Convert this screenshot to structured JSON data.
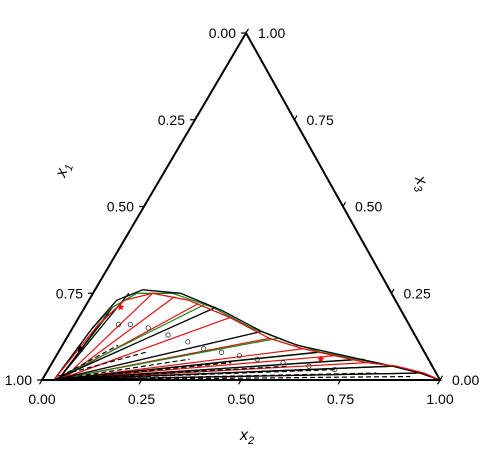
{
  "chart_data": {
    "type": "ternary",
    "axes": {
      "x1": {
        "label": "x",
        "subscript": "1",
        "ticks": [
          "0.00",
          "0.25",
          "0.50",
          "0.75",
          "1.00"
        ]
      },
      "x2": {
        "label": "x",
        "subscript": "2",
        "ticks": [
          "0.00",
          "0.25",
          "0.50",
          "0.75",
          "1.00"
        ]
      },
      "x3": {
        "label": "x",
        "subscript": "3",
        "ticks": [
          "0.00",
          "0.25",
          "0.50",
          "0.75",
          "1.00"
        ]
      }
    },
    "binodal_curves": [
      {
        "color": "#1a8a1a",
        "points": [
          [
            0.97,
            0.03,
            0.0
          ],
          [
            0.8,
            0.05,
            0.15
          ],
          [
            0.72,
            0.07,
            0.21
          ],
          [
            0.64,
            0.11,
            0.25
          ],
          [
            0.55,
            0.2,
            0.25
          ],
          [
            0.47,
            0.32,
            0.21
          ],
          [
            0.4,
            0.45,
            0.15
          ],
          [
            0.33,
            0.56,
            0.11
          ],
          [
            0.26,
            0.66,
            0.08
          ],
          [
            0.18,
            0.76,
            0.06
          ],
          [
            0.1,
            0.86,
            0.04
          ],
          [
            0.04,
            0.94,
            0.02
          ],
          [
            0.0,
            1.0,
            0.0
          ]
        ]
      },
      {
        "color": "#000000",
        "points": [
          [
            0.97,
            0.03,
            0.0
          ],
          [
            0.8,
            0.05,
            0.15
          ],
          [
            0.7,
            0.07,
            0.23
          ],
          [
            0.62,
            0.12,
            0.26
          ],
          [
            0.53,
            0.22,
            0.25
          ],
          [
            0.45,
            0.35,
            0.2
          ],
          [
            0.38,
            0.48,
            0.14
          ],
          [
            0.31,
            0.59,
            0.1
          ],
          [
            0.24,
            0.68,
            0.08
          ],
          [
            0.17,
            0.77,
            0.06
          ],
          [
            0.1,
            0.86,
            0.04
          ],
          [
            0.04,
            0.94,
            0.02
          ],
          [
            0.0,
            1.0,
            0.0
          ]
        ]
      },
      {
        "color": "#e01010",
        "points": [
          [
            0.97,
            0.03,
            0.0
          ],
          [
            0.78,
            0.06,
            0.16
          ],
          [
            0.68,
            0.09,
            0.23
          ],
          [
            0.6,
            0.15,
            0.25
          ],
          [
            0.52,
            0.25,
            0.23
          ],
          [
            0.44,
            0.38,
            0.18
          ],
          [
            0.37,
            0.51,
            0.12
          ],
          [
            0.3,
            0.61,
            0.09
          ],
          [
            0.23,
            0.7,
            0.07
          ],
          [
            0.16,
            0.79,
            0.05
          ],
          [
            0.09,
            0.87,
            0.04
          ],
          [
            0.03,
            0.95,
            0.02
          ],
          [
            0.0,
            1.0,
            0.0
          ]
        ]
      }
    ],
    "tie_lines_black": [
      [
        [
          0.96,
          0.04,
          0.0
        ],
        [
          0.66,
          0.09,
          0.25
        ]
      ],
      [
        [
          0.96,
          0.04,
          0.0
        ],
        [
          0.72,
          0.07,
          0.21
        ]
      ],
      [
        [
          0.97,
          0.03,
          0.0
        ],
        [
          0.46,
          0.33,
          0.21
        ]
      ],
      [
        [
          0.97,
          0.03,
          0.0
        ],
        [
          0.38,
          0.48,
          0.14
        ]
      ],
      [
        [
          0.98,
          0.02,
          0.0
        ],
        [
          0.27,
          0.65,
          0.08
        ]
      ],
      [
        [
          0.98,
          0.02,
          0.0
        ],
        [
          0.17,
          0.77,
          0.06
        ]
      ],
      [
        [
          0.99,
          0.01,
          0.0
        ],
        [
          0.1,
          0.86,
          0.04
        ]
      ],
      [
        [
          0.99,
          0.01,
          0.0
        ],
        [
          0.05,
          0.93,
          0.02
        ]
      ]
    ],
    "tie_lines_green": [
      [
        [
          0.96,
          0.04,
          0.0
        ],
        [
          0.74,
          0.07,
          0.19
        ]
      ],
      [
        [
          0.97,
          0.03,
          0.0
        ],
        [
          0.48,
          0.3,
          0.22
        ]
      ],
      [
        [
          0.97,
          0.03,
          0.0
        ],
        [
          0.35,
          0.53,
          0.12
        ]
      ],
      [
        [
          0.98,
          0.02,
          0.0
        ],
        [
          0.26,
          0.66,
          0.08
        ]
      ],
      [
        [
          0.98,
          0.02,
          0.0
        ],
        [
          0.16,
          0.78,
          0.06
        ]
      ],
      [
        [
          0.99,
          0.01,
          0.0
        ],
        [
          0.09,
          0.87,
          0.04
        ]
      ]
    ],
    "tie_lines_red": [
      [
        [
          0.95,
          0.05,
          0.0
        ],
        [
          0.6,
          0.15,
          0.25
        ]
      ],
      [
        [
          0.95,
          0.05,
          0.0
        ],
        [
          0.55,
          0.21,
          0.24
        ]
      ],
      [
        [
          0.96,
          0.04,
          0.0
        ],
        [
          0.5,
          0.28,
          0.22
        ]
      ],
      [
        [
          0.96,
          0.04,
          0.0
        ],
        [
          0.44,
          0.38,
          0.18
        ]
      ],
      [
        [
          0.97,
          0.03,
          0.0
        ],
        [
          0.37,
          0.51,
          0.12
        ]
      ],
      [
        [
          0.97,
          0.03,
          0.0
        ],
        [
          0.3,
          0.61,
          0.09
        ]
      ],
      [
        [
          0.98,
          0.02,
          0.0
        ],
        [
          0.23,
          0.7,
          0.07
        ]
      ],
      [
        [
          0.98,
          0.02,
          0.0
        ],
        [
          0.16,
          0.79,
          0.05
        ]
      ],
      [
        [
          0.99,
          0.01,
          0.0
        ],
        [
          0.09,
          0.87,
          0.04
        ]
      ],
      [
        [
          0.99,
          0.01,
          0.0
        ],
        [
          0.03,
          0.95,
          0.02
        ]
      ]
    ],
    "tie_lines_dashed": [
      [
        [
          0.95,
          0.04,
          0.01
        ],
        [
          0.76,
          0.14,
          0.1
        ]
      ],
      [
        [
          0.96,
          0.03,
          0.01
        ],
        [
          0.7,
          0.22,
          0.08
        ]
      ],
      [
        [
          0.97,
          0.03,
          0.0
        ],
        [
          0.6,
          0.34,
          0.06
        ]
      ],
      [
        [
          0.97,
          0.03,
          0.0
        ],
        [
          0.5,
          0.45,
          0.05
        ]
      ],
      [
        [
          0.98,
          0.02,
          0.0
        ],
        [
          0.36,
          0.6,
          0.04
        ]
      ],
      [
        [
          0.98,
          0.02,
          0.0
        ],
        [
          0.25,
          0.72,
          0.03
        ]
      ],
      [
        [
          0.99,
          0.01,
          0.0
        ],
        [
          0.15,
          0.83,
          0.02
        ]
      ],
      [
        [
          0.99,
          0.01,
          0.0
        ],
        [
          0.07,
          0.92,
          0.01
        ]
      ]
    ],
    "open_circles": [
      [
        0.73,
        0.11,
        0.16
      ],
      [
        0.7,
        0.14,
        0.16
      ],
      [
        0.66,
        0.19,
        0.15
      ],
      [
        0.62,
        0.25,
        0.13
      ],
      [
        0.58,
        0.31,
        0.11
      ],
      [
        0.55,
        0.36,
        0.09
      ],
      [
        0.51,
        0.41,
        0.08
      ],
      [
        0.47,
        0.46,
        0.07
      ],
      [
        0.43,
        0.51,
        0.06
      ],
      [
        0.37,
        0.58,
        0.05
      ],
      [
        0.31,
        0.65,
        0.04
      ],
      [
        0.25,
        0.72,
        0.03
      ]
    ],
    "red_stars": [
      [
        0.7,
        0.09,
        0.21
      ],
      [
        0.27,
        0.67,
        0.06
      ]
    ],
    "black_stars": [
      [
        0.86,
        0.05,
        0.09
      ]
    ]
  }
}
